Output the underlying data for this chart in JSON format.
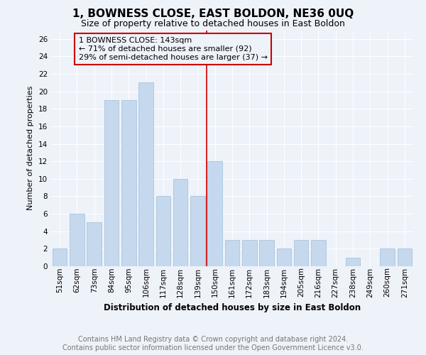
{
  "title": "1, BOWNESS CLOSE, EAST BOLDON, NE36 0UQ",
  "subtitle": "Size of property relative to detached houses in East Boldon",
  "xlabel": "Distribution of detached houses by size in East Boldon",
  "ylabel": "Number of detached properties",
  "categories": [
    "51sqm",
    "62sqm",
    "73sqm",
    "84sqm",
    "95sqm",
    "106sqm",
    "117sqm",
    "128sqm",
    "139sqm",
    "150sqm",
    "161sqm",
    "172sqm",
    "183sqm",
    "194sqm",
    "205sqm",
    "216sqm",
    "227sqm",
    "238sqm",
    "249sqm",
    "260sqm",
    "271sqm"
  ],
  "values": [
    2,
    6,
    5,
    19,
    19,
    21,
    8,
    10,
    8,
    12,
    3,
    3,
    3,
    2,
    3,
    3,
    0,
    1,
    0,
    2,
    2
  ],
  "bar_color": "#c5d8ed",
  "bar_edge_color": "#a8c4dc",
  "vline_x_index": 8.5,
  "vline_color": "#cc0000",
  "ylim": [
    0,
    27
  ],
  "yticks": [
    0,
    2,
    4,
    6,
    8,
    10,
    12,
    14,
    16,
    18,
    20,
    22,
    24,
    26
  ],
  "annotation_text": "1 BOWNESS CLOSE: 143sqm\n← 71% of detached houses are smaller (92)\n29% of semi-detached houses are larger (37) →",
  "annotation_box_edgecolor": "#cc0000",
  "footnote": "Contains HM Land Registry data © Crown copyright and database right 2024.\nContains public sector information licensed under the Open Government Licence v3.0.",
  "title_fontsize": 11,
  "subtitle_fontsize": 9,
  "annotation_fontsize": 8,
  "ylabel_fontsize": 8,
  "xlabel_fontsize": 8.5,
  "footnote_fontsize": 7,
  "tick_fontsize": 7.5,
  "background_color": "#eef2f9",
  "grid_color": "#ffffff"
}
